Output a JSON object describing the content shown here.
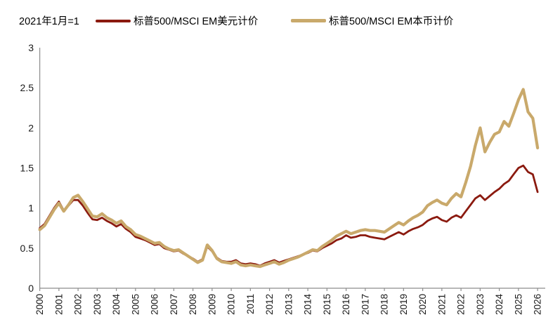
{
  "header": {
    "note": "2021年1月=1"
  },
  "legend": [
    {
      "label": "标普500/MSCI EM美元计价",
      "color": "#8B1A0F"
    },
    {
      "label": "标普500/MSCI EM本币计价",
      "color": "#C9A96B"
    }
  ],
  "chart_data": {
    "type": "line",
    "title": "",
    "note": "2021年1月=1",
    "xlabel": "",
    "ylabel": "",
    "xlim": [
      2000,
      2026.35
    ],
    "ylim": [
      0,
      3
    ],
    "grid": false,
    "legend_position": "top",
    "x_ticks": [
      2000,
      2001,
      2002,
      2003,
      2004,
      2005,
      2006,
      2007,
      2008,
      2009,
      2010,
      2011,
      2012,
      2013,
      2014,
      2015,
      2016,
      2017,
      2018,
      2019,
      2020,
      2021,
      2022,
      2023,
      2024,
      2025,
      2026
    ],
    "y_ticks": [
      0,
      0.5,
      1,
      1.5,
      2,
      2.5,
      3
    ],
    "x_start": 2000,
    "x_step": 0.25,
    "axis_color": "#8c8c8c",
    "tick_label_color": "#1a1a1a",
    "series": [
      {
        "name": "标普500/MSCI EM美元计价",
        "color": "#8B1A0F",
        "stroke_width": 2.8,
        "values": [
          0.75,
          0.8,
          0.9,
          1.0,
          1.08,
          0.97,
          1.03,
          1.1,
          1.1,
          1.03,
          0.94,
          0.86,
          0.85,
          0.88,
          0.84,
          0.81,
          0.77,
          0.8,
          0.74,
          0.7,
          0.64,
          0.62,
          0.6,
          0.57,
          0.54,
          0.55,
          0.5,
          0.48,
          0.46,
          0.47,
          0.43,
          0.4,
          0.37,
          0.33,
          0.36,
          0.52,
          0.46,
          0.38,
          0.34,
          0.33,
          0.33,
          0.35,
          0.31,
          0.3,
          0.31,
          0.3,
          0.28,
          0.31,
          0.33,
          0.35,
          0.32,
          0.34,
          0.36,
          0.38,
          0.4,
          0.42,
          0.44,
          0.47,
          0.46,
          0.5,
          0.53,
          0.56,
          0.6,
          0.62,
          0.66,
          0.63,
          0.64,
          0.66,
          0.66,
          0.64,
          0.63,
          0.62,
          0.61,
          0.64,
          0.67,
          0.7,
          0.67,
          0.71,
          0.74,
          0.76,
          0.79,
          0.84,
          0.87,
          0.89,
          0.85,
          0.83,
          0.88,
          0.91,
          0.88,
          0.96,
          1.04,
          1.12,
          1.16,
          1.1,
          1.15,
          1.2,
          1.24,
          1.3,
          1.34,
          1.42,
          1.5,
          1.53,
          1.45,
          1.42,
          1.2
        ]
      },
      {
        "name": "标普500/MSCI EM本币计价",
        "color": "#C9A96B",
        "stroke_width": 4.2,
        "values": [
          0.73,
          0.78,
          0.88,
          0.98,
          1.06,
          0.96,
          1.04,
          1.13,
          1.16,
          1.08,
          0.99,
          0.9,
          0.89,
          0.93,
          0.88,
          0.85,
          0.81,
          0.84,
          0.77,
          0.73,
          0.67,
          0.65,
          0.62,
          0.59,
          0.56,
          0.57,
          0.52,
          0.49,
          0.47,
          0.48,
          0.44,
          0.4,
          0.36,
          0.32,
          0.35,
          0.54,
          0.47,
          0.37,
          0.33,
          0.32,
          0.31,
          0.33,
          0.29,
          0.28,
          0.29,
          0.28,
          0.27,
          0.29,
          0.31,
          0.33,
          0.3,
          0.32,
          0.35,
          0.37,
          0.39,
          0.42,
          0.45,
          0.48,
          0.47,
          0.52,
          0.56,
          0.6,
          0.65,
          0.68,
          0.71,
          0.68,
          0.7,
          0.72,
          0.73,
          0.72,
          0.72,
          0.71,
          0.7,
          0.74,
          0.78,
          0.82,
          0.79,
          0.84,
          0.88,
          0.91,
          0.95,
          1.03,
          1.07,
          1.1,
          1.06,
          1.04,
          1.12,
          1.18,
          1.14,
          1.32,
          1.52,
          1.78,
          2.0,
          1.7,
          1.82,
          1.92,
          1.95,
          2.08,
          2.02,
          2.18,
          2.35,
          2.48,
          2.2,
          2.12,
          1.75
        ]
      }
    ]
  }
}
